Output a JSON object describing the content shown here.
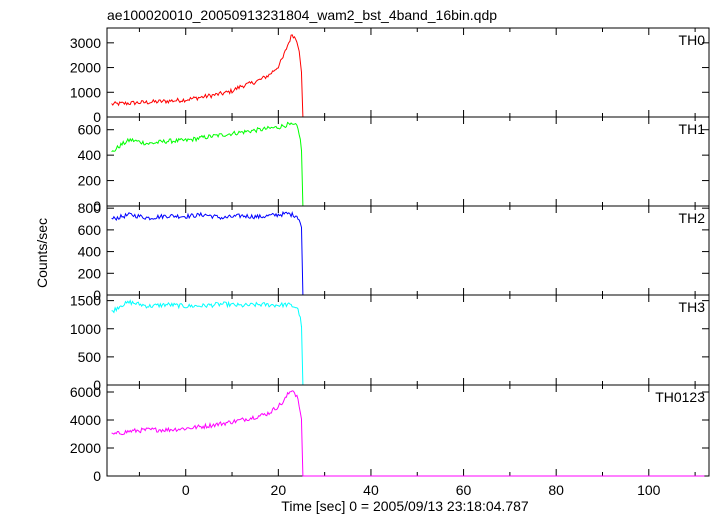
{
  "title": "ae100020010_20050913231804_wam2_bst_4band_16bin.qdp",
  "chart_data": {
    "type": "line",
    "title": "ae100020010_20050913231804_wam2_bst_4band_16bin.qdp",
    "xlabel": "Time [sec] 0 = 2005/09/13 23:18:04.787",
    "ylabel": "Counts/sec",
    "xlim": [
      -17,
      113
    ],
    "xticks": [
      0,
      20,
      40,
      60,
      80,
      100
    ],
    "grid": false,
    "legend": "none",
    "panels": [
      {
        "name": "TH0",
        "color": "#ff0000",
        "ylim": [
          0,
          3600
        ],
        "yticks": [
          0,
          1000,
          2000,
          3000
        ],
        "points": [
          [
            -16,
            520
          ],
          [
            -12,
            560
          ],
          [
            -8,
            600
          ],
          [
            -4,
            640
          ],
          [
            0,
            700
          ],
          [
            4,
            820
          ],
          [
            8,
            950
          ],
          [
            10,
            1050
          ],
          [
            12,
            1250
          ],
          [
            14,
            1350
          ],
          [
            16,
            1500
          ],
          [
            18,
            1700
          ],
          [
            20,
            2050
          ],
          [
            21,
            2400
          ],
          [
            22,
            2900
          ],
          [
            23,
            3350
          ],
          [
            24,
            3100
          ],
          [
            24.6,
            2650
          ],
          [
            25,
            1750
          ],
          [
            25.3,
            0
          ],
          [
            112,
            0
          ]
        ]
      },
      {
        "name": "TH1",
        "color": "#00ff00",
        "ylim": [
          0,
          700
        ],
        "yticks": [
          0,
          200,
          400,
          600
        ],
        "points": [
          [
            -16,
            420
          ],
          [
            -14,
            480
          ],
          [
            -12,
            520
          ],
          [
            -8,
            490
          ],
          [
            -4,
            510
          ],
          [
            0,
            515
          ],
          [
            4,
            540
          ],
          [
            8,
            560
          ],
          [
            12,
            580
          ],
          [
            16,
            600
          ],
          [
            20,
            620
          ],
          [
            22,
            640
          ],
          [
            24,
            630
          ],
          [
            24.6,
            560
          ],
          [
            25,
            440
          ],
          [
            25.3,
            0
          ],
          [
            112,
            0
          ]
        ]
      },
      {
        "name": "TH2",
        "color": "#0000ff",
        "ylim": [
          0,
          820
        ],
        "yticks": [
          0,
          200,
          400,
          600,
          800
        ],
        "points": [
          [
            -16,
            700
          ],
          [
            -12,
            740
          ],
          [
            -8,
            710
          ],
          [
            -4,
            730
          ],
          [
            0,
            725
          ],
          [
            4,
            740
          ],
          [
            8,
            710
          ],
          [
            12,
            730
          ],
          [
            16,
            720
          ],
          [
            20,
            740
          ],
          [
            22,
            750
          ],
          [
            24,
            730
          ],
          [
            24.6,
            690
          ],
          [
            25,
            620
          ],
          [
            25.3,
            0
          ],
          [
            112,
            0
          ]
        ]
      },
      {
        "name": "TH3",
        "color": "#00ffff",
        "ylim": [
          0,
          1600
        ],
        "yticks": [
          0,
          500,
          1000,
          1500
        ],
        "points": [
          [
            -16,
            1300
          ],
          [
            -14,
            1420
          ],
          [
            -12,
            1470
          ],
          [
            -8,
            1400
          ],
          [
            -4,
            1430
          ],
          [
            0,
            1400
          ],
          [
            4,
            1410
          ],
          [
            8,
            1440
          ],
          [
            12,
            1410
          ],
          [
            16,
            1430
          ],
          [
            20,
            1420
          ],
          [
            22,
            1430
          ],
          [
            24,
            1380
          ],
          [
            24.6,
            1250
          ],
          [
            25,
            1050
          ],
          [
            25.3,
            0
          ],
          [
            112,
            0
          ]
        ]
      },
      {
        "name": "TH0123",
        "color": "#ff00ff",
        "ylim": [
          0,
          6500
        ],
        "yticks": [
          0,
          2000,
          4000,
          6000
        ],
        "points": [
          [
            -16,
            2950
          ],
          [
            -12,
            3200
          ],
          [
            -8,
            3300
          ],
          [
            -4,
            3300
          ],
          [
            0,
            3400
          ],
          [
            4,
            3550
          ],
          [
            8,
            3750
          ],
          [
            12,
            4000
          ],
          [
            16,
            4300
          ],
          [
            18,
            4500
          ],
          [
            20,
            5000
          ],
          [
            21,
            5250
          ],
          [
            22,
            5800
          ],
          [
            23,
            6200
          ],
          [
            24,
            5700
          ],
          [
            24.6,
            4900
          ],
          [
            25,
            3900
          ],
          [
            25.3,
            0
          ],
          [
            112,
            0
          ]
        ]
      }
    ]
  }
}
